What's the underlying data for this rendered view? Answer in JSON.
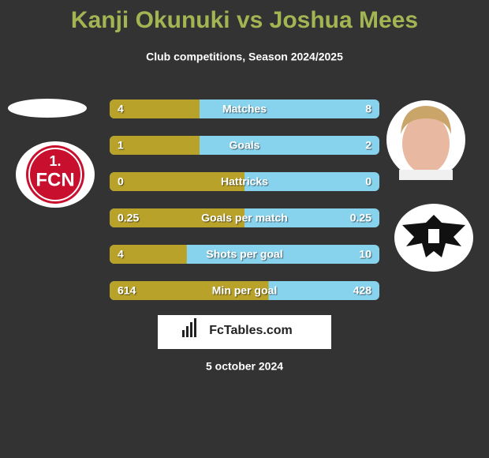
{
  "header": {
    "title": "Kanji Okunuki vs Joshua Mees",
    "subtitle": "Club competitions, Season 2024/2025"
  },
  "rows": [
    {
      "label": "Matches",
      "left": 4,
      "right": 8
    },
    {
      "label": "Goals",
      "left": 1,
      "right": 2
    },
    {
      "label": "Hattricks",
      "left": 0,
      "right": 0
    },
    {
      "label": "Goals per match",
      "left": 0.25,
      "right": 0.25
    },
    {
      "label": "Shots per goal",
      "left": 4,
      "right": 10
    },
    {
      "label": "Min per goal",
      "left": 614,
      "right": 428
    }
  ],
  "left_badge": [
    "1.",
    "FCN"
  ],
  "brand": "FcTables.com",
  "date": "5 october 2024"
}
